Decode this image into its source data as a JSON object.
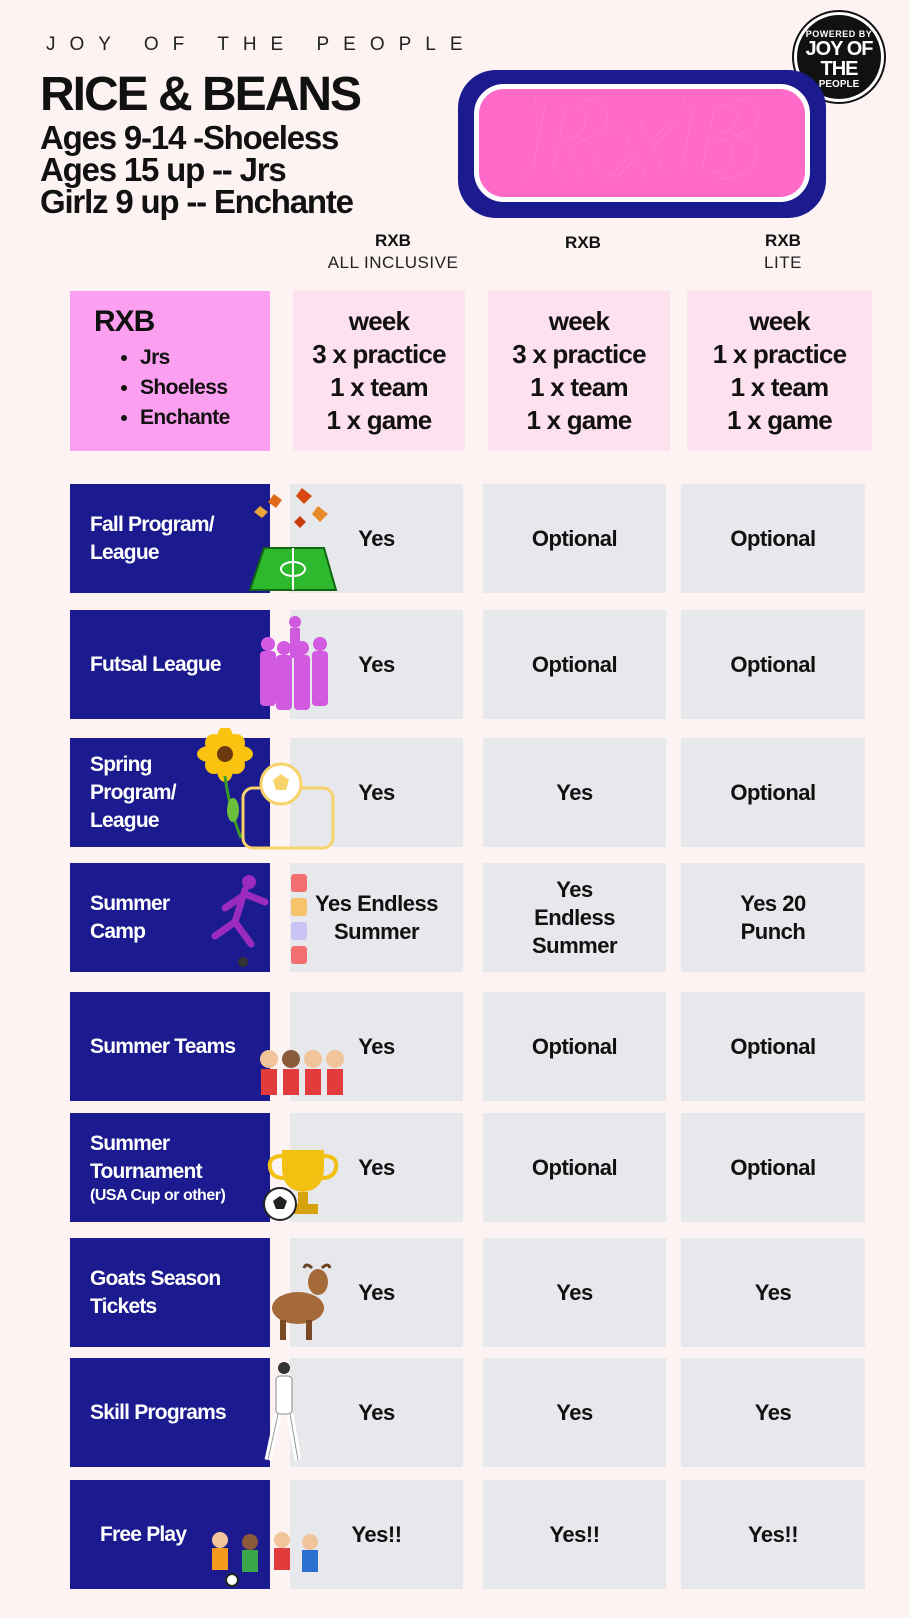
{
  "header": {
    "kicker": "JOY OF THE PEOPLE",
    "title": "RICE & BEANS",
    "lines": [
      "Ages 9-14 -Shoeless",
      "Ages 15 up -- Jrs",
      "Girlz 9 up -- Enchante"
    ],
    "badge": {
      "top": "POWERED BY",
      "main": "JOY OF THE",
      "bottom": "PEOPLE"
    },
    "logo": "RxB"
  },
  "columns": [
    {
      "name": "RXB",
      "sub": "ALL INCLUSIVE"
    },
    {
      "name": "RXB",
      "sub": ""
    },
    {
      "name": "RXB",
      "sub": "LITE"
    }
  ],
  "tiers": {
    "left_title": "RXB",
    "groups": [
      "Jrs",
      "Shoeless",
      "Enchante"
    ],
    "plans": [
      [
        "week",
        "3 x practice",
        "1 x team",
        "1 x game"
      ],
      [
        "week",
        "3 x practice",
        "1 x team",
        "1 x game"
      ],
      [
        "week",
        "1 x practice",
        "1 x team",
        "1 x game"
      ]
    ]
  },
  "rows": [
    {
      "label": "Fall Program/ League",
      "small": "",
      "values": [
        "Yes",
        "Optional",
        "Optional"
      ]
    },
    {
      "label": "Futsal League",
      "small": "",
      "values": [
        "Yes",
        "Optional",
        "Optional"
      ]
    },
    {
      "label": "Spring Program/ League",
      "small": "",
      "values": [
        "Yes",
        "Yes",
        "Optional"
      ]
    },
    {
      "label": "Summer Camp",
      "small": "",
      "values": [
        "Yes Endless Summer",
        "Yes Endless Summer",
        "Yes 20 Punch"
      ]
    },
    {
      "label": "Summer Teams",
      "small": "",
      "values": [
        "Yes",
        "Optional",
        "Optional"
      ]
    },
    {
      "label": "Summer Tournament",
      "small": "(USA Cup or other)",
      "values": [
        "Yes",
        "Optional",
        "Optional"
      ]
    },
    {
      "label": "Goats Season Tickets",
      "small": "",
      "values": [
        "Yes",
        "Yes",
        "Yes"
      ]
    },
    {
      "label": "Skill Programs",
      "small": "",
      "values": [
        "Yes",
        "Yes",
        "Yes"
      ]
    },
    {
      "label": "Free Play",
      "small": "",
      "values": [
        "Yes!!",
        "Yes!!",
        "Yes!!"
      ]
    }
  ],
  "camp_word": "CAMP",
  "colors": {
    "navy": "#1b1a8e",
    "pink": "#ff6ac8",
    "tier_left": "#fd9ff0",
    "tier": "#fee1ef",
    "cell": "#e7e8ec"
  }
}
